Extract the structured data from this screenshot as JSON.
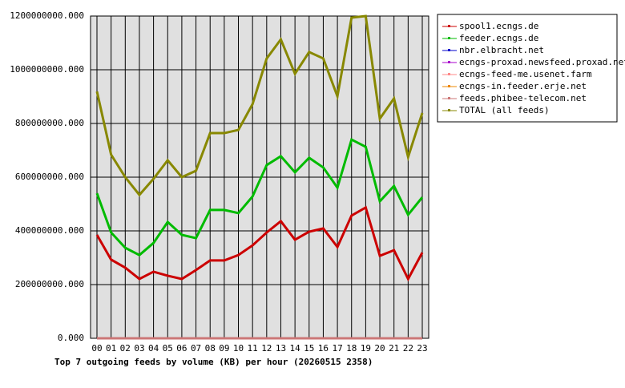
{
  "chart_data": {
    "type": "line",
    "title": "Top 7 outgoing feeds by volume (KB) per hour (20260515 2358)",
    "categories": [
      "00",
      "01",
      "02",
      "03",
      "04",
      "05",
      "06",
      "07",
      "08",
      "09",
      "10",
      "11",
      "12",
      "13",
      "14",
      "15",
      "16",
      "17",
      "18",
      "19",
      "20",
      "21",
      "22",
      "23"
    ],
    "series": [
      {
        "name": "spool1.ecngs.de",
        "color": "#cc0000",
        "values": [
          385000000,
          293000000,
          263000000,
          221000000,
          248000000,
          233000000,
          221000000,
          254000000,
          290000000,
          290000000,
          310000000,
          346000000,
          394000000,
          436000000,
          367000000,
          397000000,
          409000000,
          340000000,
          457000000,
          487000000,
          307000000,
          328000000,
          221000000,
          319000000
        ]
      },
      {
        "name": "feeder.ecngs.de",
        "color": "#00bb00",
        "values": [
          540000000,
          394000000,
          337000000,
          310000000,
          355000000,
          433000000,
          385000000,
          373000000,
          478000000,
          478000000,
          466000000,
          528000000,
          645000000,
          678000000,
          618000000,
          672000000,
          636000000,
          561000000,
          740000000,
          713000000,
          510000000,
          567000000,
          460000000,
          525000000
        ]
      },
      {
        "name": "nbr.elbracht.net",
        "color": "#0000cc",
        "values": [
          0,
          0,
          0,
          0,
          0,
          0,
          0,
          0,
          0,
          0,
          0,
          0,
          0,
          0,
          0,
          0,
          0,
          0,
          0,
          0,
          0,
          0,
          0,
          0
        ]
      },
      {
        "name": "ecngs-proxad.newsfeed.proxad.net",
        "color": "#aa00cc",
        "values": [
          0,
          0,
          0,
          0,
          0,
          0,
          0,
          0,
          0,
          0,
          0,
          0,
          0,
          0,
          0,
          0,
          0,
          0,
          0,
          0,
          0,
          0,
          0,
          0
        ]
      },
      {
        "name": "ecngs-feed-me.usenet.farm",
        "color": "#ff8888",
        "values": [
          0,
          0,
          0,
          0,
          0,
          0,
          0,
          0,
          0,
          0,
          0,
          0,
          0,
          0,
          0,
          0,
          0,
          0,
          0,
          0,
          0,
          0,
          0,
          0
        ]
      },
      {
        "name": "ecngs-in.feeder.erje.net",
        "color": "#ee8800",
        "values": [
          0,
          0,
          0,
          0,
          0,
          0,
          0,
          0,
          0,
          0,
          0,
          0,
          0,
          0,
          0,
          0,
          0,
          0,
          0,
          0,
          0,
          0,
          0,
          0
        ]
      },
      {
        "name": "feeds.phibee-telecom.net",
        "color": "#cc7777",
        "values": [
          0,
          0,
          0,
          0,
          0,
          0,
          0,
          0,
          0,
          0,
          0,
          0,
          0,
          0,
          0,
          0,
          0,
          0,
          0,
          0,
          0,
          0,
          0,
          0
        ]
      },
      {
        "name": "TOTAL (all feeds)",
        "color": "#888800",
        "values": [
          919000000,
          684000000,
          600000000,
          534000000,
          594000000,
          663000000,
          600000000,
          624000000,
          764000000,
          764000000,
          776000000,
          872000000,
          1042000000,
          1113000000,
          985000000,
          1066000000,
          1042000000,
          901000000,
          1194000000,
          1200000000,
          818000000,
          893000000,
          675000000,
          839000000
        ]
      }
    ],
    "ylim": [
      0,
      1200000000
    ],
    "yticks": [
      {
        "value": 0,
        "label": "0.000"
      },
      {
        "value": 200000000,
        "label": "200000000.000"
      },
      {
        "value": 400000000,
        "label": "400000000.000"
      },
      {
        "value": 600000000,
        "label": "600000000.000"
      },
      {
        "value": 800000000,
        "label": "800000000.000"
      },
      {
        "value": 1000000000,
        "label": "1000000000.000"
      },
      {
        "value": 1200000000,
        "label": "1200000000.000"
      }
    ],
    "grid": true
  }
}
